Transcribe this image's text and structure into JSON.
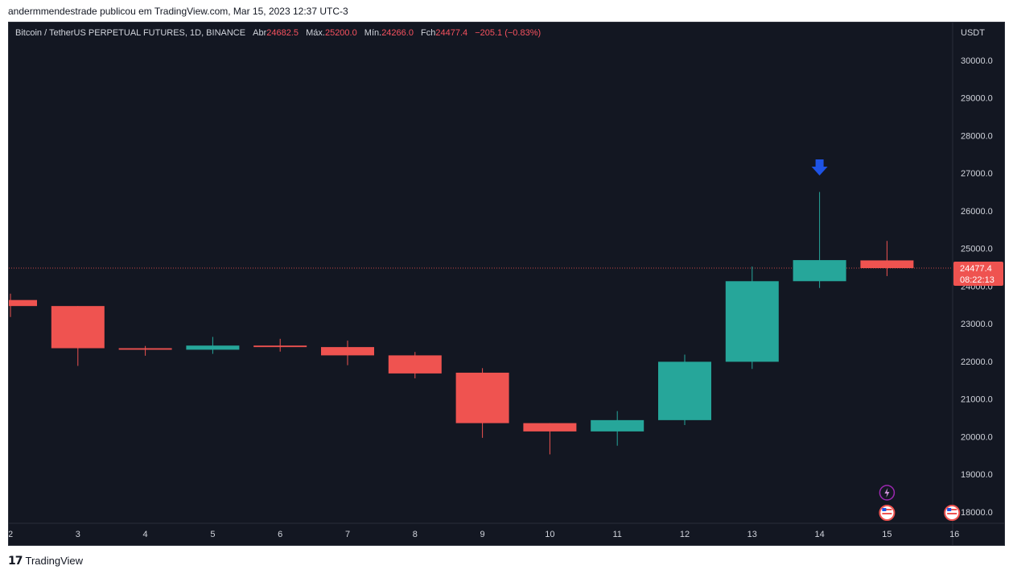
{
  "caption": "andermmendestrade publicou em TradingView.com, Mar 15, 2023 12:37 UTC-3",
  "legend": {
    "symbol": "Bitcoin / TetherUS PERPETUAL FUTURES, 1D, BINANCE",
    "open_label": "Abr",
    "open": "24682.5",
    "high_label": "Máx.",
    "high": "25200.0",
    "low_label": "Mín.",
    "low": "24266.0",
    "close_label": "Fch",
    "close": "24477.4",
    "change": "−205.1 (−0.83%)"
  },
  "footer": {
    "brand": "TradingView"
  },
  "colors": {
    "up": "#26a69a",
    "down": "#ef5350",
    "bg": "#131722",
    "grid": "#2a2e39",
    "arrow": "#1e53e5",
    "text": "#d1d4dc"
  },
  "chart_data": {
    "type": "candlestick",
    "currency_label": "USDT",
    "ylim": [
      17700,
      31000
    ],
    "yticks": [
      {
        "value": 18000,
        "label": "18000.0"
      },
      {
        "value": 19000,
        "label": "19000.0"
      },
      {
        "value": 20000,
        "label": "20000.0"
      },
      {
        "value": 21000,
        "label": "21000.0"
      },
      {
        "value": 22000,
        "label": "22000.0"
      },
      {
        "value": 23000,
        "label": "23000.0"
      },
      {
        "value": 24000,
        "label": "24000.0"
      },
      {
        "value": 25000,
        "label": "25000.0"
      },
      {
        "value": 26000,
        "label": "26000.0"
      },
      {
        "value": 27000,
        "label": "27000.0"
      },
      {
        "value": 28000,
        "label": "28000.0"
      },
      {
        "value": 29000,
        "label": "29000.0"
      },
      {
        "value": 30000,
        "label": "30000.0"
      }
    ],
    "xticks": [
      "2",
      "3",
      "4",
      "5",
      "6",
      "7",
      "8",
      "9",
      "10",
      "11",
      "12",
      "13",
      "14",
      "15",
      "16"
    ],
    "candles": [
      {
        "date": "2",
        "open": 23630,
        "high": 23800,
        "low": 23180,
        "close": 23470
      },
      {
        "date": "3",
        "open": 23470,
        "high": 23470,
        "low": 21880,
        "close": 22350
      },
      {
        "date": "4",
        "open": 22350,
        "high": 22410,
        "low": 22150,
        "close": 22310
      },
      {
        "date": "5",
        "open": 22310,
        "high": 22650,
        "low": 22200,
        "close": 22420
      },
      {
        "date": "6",
        "open": 22420,
        "high": 22600,
        "low": 22260,
        "close": 22380
      },
      {
        "date": "7",
        "open": 22380,
        "high": 22550,
        "low": 21900,
        "close": 22160
      },
      {
        "date": "8",
        "open": 22160,
        "high": 22250,
        "low": 21550,
        "close": 21680
      },
      {
        "date": "9",
        "open": 21700,
        "high": 21820,
        "low": 19970,
        "close": 20360
      },
      {
        "date": "10",
        "open": 20360,
        "high": 20360,
        "low": 19530,
        "close": 20140
      },
      {
        "date": "11",
        "open": 20140,
        "high": 20680,
        "low": 19760,
        "close": 20440
      },
      {
        "date": "12",
        "open": 20440,
        "high": 22180,
        "low": 20310,
        "close": 21990
      },
      {
        "date": "13",
        "open": 21990,
        "high": 24520,
        "low": 21800,
        "close": 24130
      },
      {
        "date": "14",
        "open": 24130,
        "high": 26500,
        "low": 23950,
        "close": 24690
      },
      {
        "date": "15",
        "open": 24682.5,
        "high": 25200,
        "low": 24266,
        "close": 24477.4
      }
    ],
    "price_line": {
      "value": 24477.4,
      "label": "24477.4",
      "countdown": "08:22:13"
    },
    "annotation": {
      "type": "arrow-down",
      "date": "14",
      "value": 27150
    }
  }
}
